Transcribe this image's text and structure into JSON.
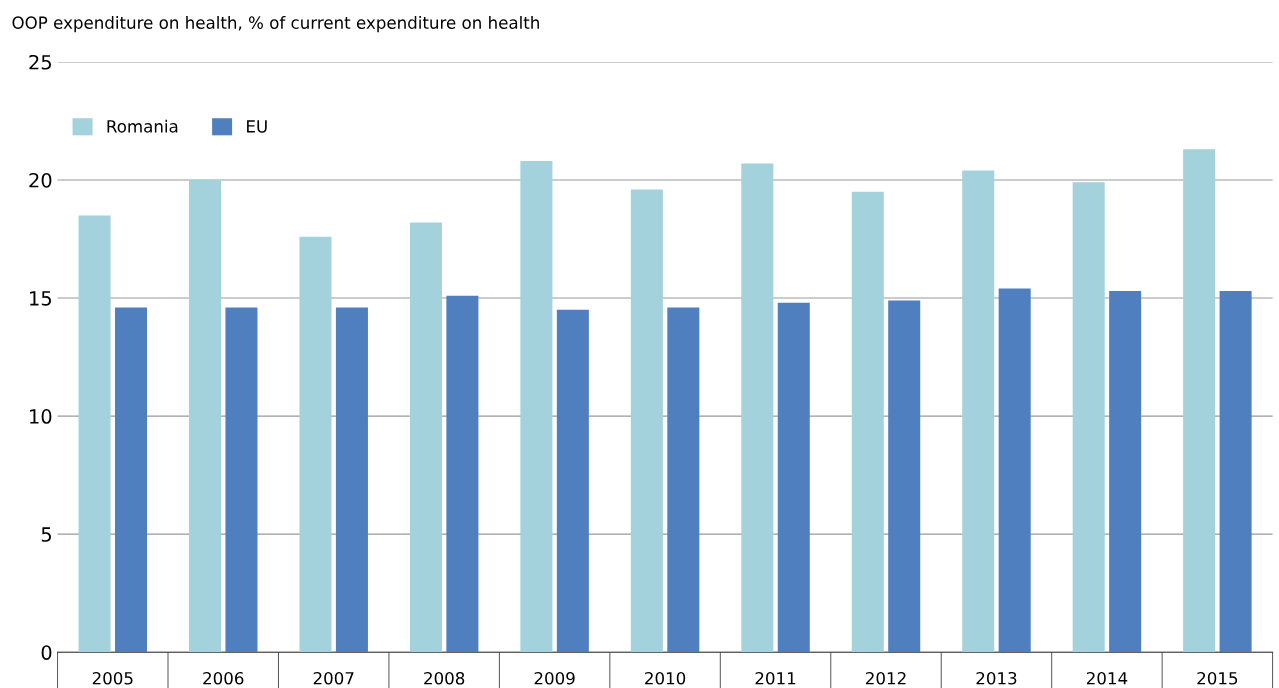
{
  "chart_data": {
    "type": "bar",
    "ylabel": "OOP expenditure on health, % of current expenditure on health",
    "categories": [
      "2005",
      "2006",
      "2007",
      "2008",
      "2009",
      "2010",
      "2011",
      "2012",
      "2013",
      "2014",
      "2015"
    ],
    "series": [
      {
        "name": "Romania",
        "color": "#a3d1dc",
        "values": [
          18.5,
          20.0,
          17.6,
          18.2,
          20.8,
          19.6,
          20.7,
          19.5,
          20.4,
          19.9,
          21.3
        ]
      },
      {
        "name": "EU",
        "color": "#4f7fbf",
        "values": [
          14.6,
          14.6,
          14.6,
          15.1,
          14.5,
          14.6,
          14.8,
          14.9,
          15.4,
          15.3,
          15.3
        ]
      }
    ],
    "ylim": [
      0,
      25
    ],
    "yticks": [
      0,
      5,
      10,
      15,
      20,
      25
    ],
    "grid": "y",
    "legend": "top left"
  }
}
